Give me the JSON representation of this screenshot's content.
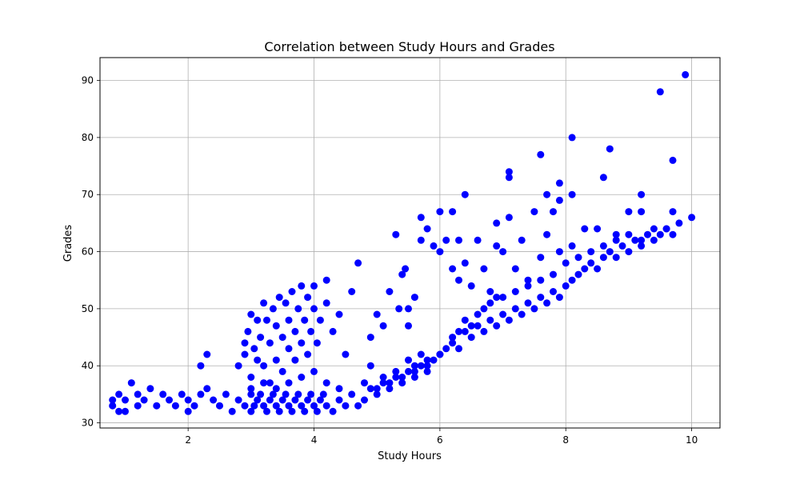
{
  "chart_data": {
    "type": "scatter",
    "title": "Correlation between Study Hours and Grades",
    "xlabel": "Study Hours",
    "ylabel": "Grades",
    "xlim": [
      0.6,
      10.45
    ],
    "ylim": [
      29.1,
      94.0
    ],
    "xticks": [
      2,
      4,
      6,
      8,
      10
    ],
    "yticks": [
      30,
      40,
      50,
      60,
      70,
      80,
      90
    ],
    "xtick_labels": [
      "2",
      "4",
      "6",
      "8",
      "10"
    ],
    "ytick_labels": [
      "30",
      "40",
      "50",
      "60",
      "70",
      "80",
      "90"
    ],
    "grid": true,
    "marker_color": "#0000ff",
    "series": [
      {
        "points": [
          [
            0.8,
            33
          ],
          [
            0.8,
            34
          ],
          [
            0.9,
            32
          ],
          [
            0.9,
            35
          ],
          [
            1.0,
            32
          ],
          [
            1.0,
            34
          ],
          [
            1.1,
            37
          ],
          [
            1.2,
            33
          ],
          [
            1.2,
            35
          ],
          [
            1.3,
            34
          ],
          [
            1.4,
            36
          ],
          [
            1.5,
            33
          ],
          [
            1.6,
            35
          ],
          [
            1.7,
            34
          ],
          [
            1.8,
            33
          ],
          [
            1.9,
            35
          ],
          [
            2.0,
            32
          ],
          [
            2.0,
            34
          ],
          [
            2.1,
            33
          ],
          [
            2.2,
            35
          ],
          [
            2.2,
            40
          ],
          [
            2.3,
            36
          ],
          [
            2.3,
            42
          ],
          [
            2.4,
            34
          ],
          [
            2.5,
            33
          ],
          [
            2.6,
            35
          ],
          [
            2.7,
            32
          ],
          [
            2.8,
            34
          ],
          [
            2.9,
            33
          ],
          [
            3.0,
            35
          ],
          [
            2.8,
            40
          ],
          [
            2.9,
            42
          ],
          [
            2.9,
            44
          ],
          [
            2.95,
            46
          ],
          [
            3.0,
            38
          ],
          [
            3.0,
            49
          ],
          [
            3.05,
            43
          ],
          [
            3.1,
            41
          ],
          [
            3.1,
            48
          ],
          [
            3.15,
            45
          ],
          [
            3.2,
            40
          ],
          [
            3.2,
            51
          ],
          [
            3.25,
            48
          ],
          [
            3.3,
            37
          ],
          [
            3.3,
            44
          ],
          [
            3.35,
            50
          ],
          [
            3.4,
            41
          ],
          [
            3.4,
            47
          ],
          [
            3.45,
            52
          ],
          [
            3.5,
            39
          ],
          [
            3.5,
            45
          ],
          [
            3.55,
            51
          ],
          [
            3.6,
            43
          ],
          [
            3.6,
            48
          ],
          [
            3.65,
            53
          ],
          [
            3.7,
            41
          ],
          [
            3.7,
            46
          ],
          [
            3.75,
            50
          ],
          [
            3.8,
            44
          ],
          [
            3.8,
            54
          ],
          [
            3.85,
            48
          ],
          [
            3.9,
            42
          ],
          [
            3.9,
            52
          ],
          [
            3.95,
            46
          ],
          [
            4.0,
            50
          ],
          [
            4.0,
            54
          ],
          [
            4.05,
            44
          ],
          [
            4.1,
            48
          ],
          [
            4.2,
            51
          ],
          [
            4.2,
            55
          ],
          [
            4.3,
            46
          ],
          [
            4.4,
            49
          ],
          [
            4.5,
            42
          ],
          [
            4.6,
            53
          ],
          [
            4.7,
            58
          ],
          [
            3.0,
            32
          ],
          [
            3.05,
            33
          ],
          [
            3.1,
            34
          ],
          [
            3.15,
            35
          ],
          [
            3.2,
            33
          ],
          [
            3.25,
            32
          ],
          [
            3.3,
            34
          ],
          [
            3.35,
            35
          ],
          [
            3.4,
            33
          ],
          [
            3.45,
            32
          ],
          [
            3.5,
            34
          ],
          [
            3.55,
            35
          ],
          [
            3.6,
            33
          ],
          [
            3.65,
            32
          ],
          [
            3.7,
            34
          ],
          [
            3.75,
            35
          ],
          [
            3.8,
            33
          ],
          [
            3.85,
            32
          ],
          [
            3.9,
            34
          ],
          [
            3.95,
            35
          ],
          [
            4.0,
            33
          ],
          [
            4.05,
            32
          ],
          [
            4.1,
            34
          ],
          [
            4.15,
            35
          ],
          [
            4.2,
            33
          ],
          [
            4.3,
            32
          ],
          [
            4.4,
            34
          ],
          [
            4.5,
            33
          ],
          [
            3.0,
            36
          ],
          [
            3.2,
            37
          ],
          [
            3.4,
            36
          ],
          [
            3.6,
            37
          ],
          [
            3.8,
            38
          ],
          [
            4.0,
            39
          ],
          [
            4.2,
            37
          ],
          [
            4.4,
            36
          ],
          [
            4.6,
            35
          ],
          [
            4.8,
            37
          ],
          [
            4.9,
            40
          ],
          [
            5.0,
            36
          ],
          [
            5.1,
            38
          ],
          [
            5.2,
            37
          ],
          [
            5.3,
            39
          ],
          [
            5.4,
            38
          ],
          [
            5.5,
            41
          ],
          [
            5.6,
            40
          ],
          [
            5.7,
            42
          ],
          [
            5.8,
            41
          ],
          [
            4.9,
            45
          ],
          [
            5.0,
            49
          ],
          [
            5.1,
            47
          ],
          [
            5.2,
            53
          ],
          [
            5.3,
            63
          ],
          [
            5.35,
            50
          ],
          [
            5.4,
            56
          ],
          [
            5.45,
            57
          ],
          [
            5.5,
            47
          ],
          [
            5.5,
            50
          ],
          [
            5.6,
            52
          ],
          [
            5.7,
            62
          ],
          [
            5.7,
            66
          ],
          [
            5.8,
            64
          ],
          [
            5.9,
            61
          ],
          [
            6.0,
            60
          ],
          [
            6.0,
            67
          ],
          [
            6.1,
            62
          ],
          [
            6.2,
            67
          ],
          [
            6.2,
            57
          ],
          [
            6.3,
            55
          ],
          [
            6.3,
            62
          ],
          [
            6.4,
            58
          ],
          [
            6.4,
            70
          ],
          [
            6.5,
            54
          ],
          [
            6.6,
            62
          ],
          [
            6.7,
            57
          ],
          [
            6.8,
            53
          ],
          [
            6.9,
            61
          ],
          [
            6.9,
            65
          ],
          [
            7.0,
            60
          ],
          [
            7.1,
            66
          ],
          [
            7.1,
            73
          ],
          [
            7.1,
            74
          ],
          [
            7.2,
            57
          ],
          [
            7.3,
            62
          ],
          [
            7.4,
            55
          ],
          [
            7.5,
            67
          ],
          [
            7.6,
            59
          ],
          [
            7.6,
            77
          ],
          [
            7.7,
            63
          ],
          [
            7.7,
            70
          ],
          [
            7.8,
            67
          ],
          [
            7.9,
            60
          ],
          [
            7.9,
            69
          ],
          [
            7.9,
            72
          ],
          [
            8.1,
            61
          ],
          [
            8.1,
            70
          ],
          [
            8.1,
            80
          ],
          [
            8.3,
            64
          ],
          [
            8.5,
            64
          ],
          [
            8.6,
            73
          ],
          [
            8.7,
            78
          ],
          [
            8.8,
            63
          ],
          [
            9.0,
            67
          ],
          [
            9.2,
            67
          ],
          [
            9.2,
            70
          ],
          [
            9.5,
            88
          ],
          [
            9.7,
            67
          ],
          [
            9.7,
            76
          ],
          [
            9.9,
            91
          ],
          [
            10.0,
            66
          ],
          [
            5.6,
            39
          ],
          [
            5.8,
            40
          ],
          [
            6.0,
            42
          ],
          [
            6.2,
            44
          ],
          [
            6.3,
            43
          ],
          [
            6.4,
            46
          ],
          [
            6.5,
            45
          ],
          [
            6.6,
            47
          ],
          [
            6.7,
            46
          ],
          [
            6.8,
            48
          ],
          [
            6.9,
            47
          ],
          [
            7.0,
            49
          ],
          [
            7.1,
            48
          ],
          [
            7.2,
            50
          ],
          [
            7.3,
            49
          ],
          [
            7.4,
            51
          ],
          [
            7.5,
            50
          ],
          [
            7.6,
            52
          ],
          [
            7.7,
            51
          ],
          [
            7.8,
            53
          ],
          [
            7.9,
            52
          ],
          [
            8.0,
            54
          ],
          [
            8.1,
            55
          ],
          [
            8.2,
            56
          ],
          [
            8.3,
            57
          ],
          [
            8.4,
            58
          ],
          [
            8.5,
            57
          ],
          [
            8.6,
            59
          ],
          [
            8.7,
            60
          ],
          [
            8.8,
            59
          ],
          [
            8.9,
            61
          ],
          [
            9.0,
            60
          ],
          [
            9.1,
            62
          ],
          [
            9.2,
            61
          ],
          [
            9.3,
            63
          ],
          [
            9.4,
            62
          ],
          [
            9.5,
            63
          ],
          [
            9.6,
            64
          ],
          [
            9.7,
            63
          ],
          [
            9.8,
            65
          ],
          [
            4.7,
            33
          ],
          [
            4.8,
            34
          ],
          [
            4.9,
            36
          ],
          [
            5.0,
            35
          ],
          [
            5.1,
            37
          ],
          [
            5.2,
            36
          ],
          [
            5.3,
            38
          ],
          [
            5.4,
            37
          ],
          [
            5.5,
            39
          ],
          [
            5.6,
            38
          ],
          [
            5.7,
            40
          ],
          [
            5.8,
            39
          ],
          [
            5.9,
            41
          ],
          [
            6.0,
            42
          ],
          [
            6.1,
            43
          ],
          [
            6.2,
            45
          ],
          [
            6.3,
            46
          ],
          [
            6.4,
            48
          ],
          [
            6.5,
            47
          ],
          [
            6.6,
            49
          ],
          [
            6.7,
            50
          ],
          [
            6.8,
            51
          ],
          [
            6.9,
            52
          ],
          [
            7.0,
            52
          ],
          [
            7.2,
            53
          ],
          [
            7.4,
            54
          ],
          [
            7.6,
            55
          ],
          [
            7.8,
            56
          ],
          [
            8.0,
            58
          ],
          [
            8.2,
            59
          ],
          [
            8.4,
            60
          ],
          [
            8.6,
            61
          ],
          [
            8.8,
            62
          ],
          [
            9.0,
            63
          ],
          [
            9.2,
            62
          ],
          [
            9.4,
            64
          ],
          [
            9.6,
            64
          ]
        ]
      }
    ]
  }
}
